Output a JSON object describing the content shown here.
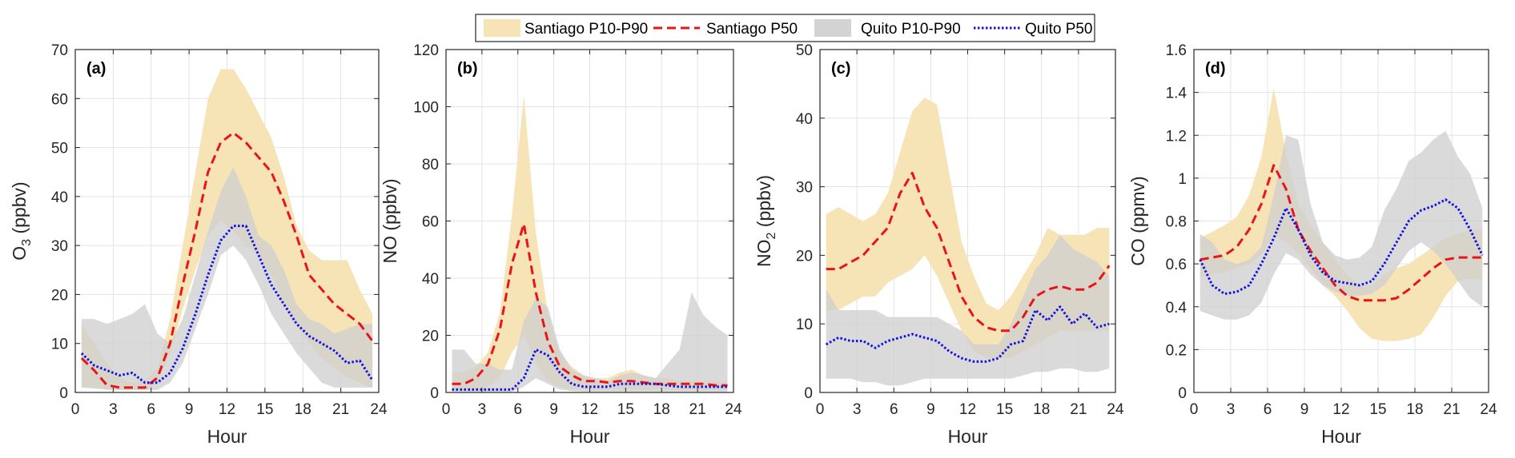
{
  "legend": {
    "items": [
      {
        "label": "Santiago P10-P90",
        "kind": "band",
        "color": "#f6e4b7"
      },
      {
        "label": "Santiago P50",
        "kind": "dashed",
        "color": "#e8141a"
      },
      {
        "label": "Quito P10-P90",
        "kind": "band",
        "color": "#d3d3d3"
      },
      {
        "label": "Quito P50",
        "kind": "dotted",
        "color": "#1212e0"
      }
    ]
  },
  "colors": {
    "santiago_band": "#f6e4b7",
    "quito_band": "#cfcfcf",
    "santiago_p50": "#e8141a",
    "quito_p50": "#1212e0",
    "grid": "#e3e3e3",
    "axis": "#262626"
  },
  "chart_data": [
    {
      "type": "area",
      "panel_label": "(a)",
      "xlabel": "Hour",
      "ylabel": "O",
      "ylabel_sub": "3",
      "ylabel_after": " (ppbv)",
      "xlim": [
        0,
        24
      ],
      "ylim": [
        0,
        70
      ],
      "xticks": [
        0,
        3,
        6,
        9,
        12,
        15,
        18,
        21,
        24
      ],
      "yticks": [
        0,
        10,
        20,
        30,
        40,
        50,
        60,
        70
      ],
      "grid": true,
      "x": [
        0.5,
        1.5,
        2.5,
        3.5,
        4.5,
        5.5,
        6.5,
        7.5,
        8.5,
        9.5,
        10.5,
        11.5,
        12.5,
        13.5,
        14.5,
        15.5,
        16.5,
        17.5,
        18.5,
        19.5,
        20.5,
        21.5,
        22.5,
        23.5
      ],
      "series": [
        {
          "name": "Santiago P10-P90",
          "kind": "band",
          "lower": [
            1,
            1,
            0.5,
            0.5,
            0.5,
            0.5,
            2,
            8,
            17,
            25,
            32,
            35,
            33,
            30,
            28,
            24,
            18,
            14,
            10,
            7,
            5,
            3,
            2,
            1
          ],
          "upper": [
            14,
            10,
            6,
            3,
            2,
            2.5,
            5,
            15,
            30,
            45,
            60,
            66,
            66,
            62,
            57,
            52,
            44,
            34,
            29,
            27,
            27,
            27,
            21,
            16
          ]
        },
        {
          "name": "Santiago P50",
          "kind": "line",
          "values": [
            7,
            4.5,
            1.5,
            1,
            1,
            1,
            3,
            10,
            22,
            33,
            45,
            51,
            53,
            51,
            48,
            45,
            39,
            32,
            24,
            21,
            18,
            16,
            14,
            10.5
          ]
        },
        {
          "name": "Quito P10-P90",
          "kind": "band",
          "lower": [
            1,
            0.8,
            0.6,
            0.5,
            0.5,
            0.5,
            0.5,
            2,
            6,
            13,
            20,
            28,
            30,
            27,
            22,
            16,
            12,
            8,
            5,
            2,
            1,
            1,
            1,
            1
          ],
          "upper": [
            15,
            15,
            14,
            15,
            16,
            18,
            12,
            10,
            15,
            24,
            33,
            41,
            46,
            40,
            32,
            30,
            25,
            18,
            15,
            14,
            12,
            13,
            14,
            14
          ]
        },
        {
          "name": "Quito P50",
          "kind": "line",
          "values": [
            8,
            5.5,
            4.5,
            3.5,
            4,
            2,
            2,
            4,
            9,
            16,
            24,
            31,
            34,
            34,
            28,
            22,
            18,
            14,
            11.5,
            10,
            8.5,
            6,
            6.5,
            2.5
          ]
        }
      ]
    },
    {
      "type": "area",
      "panel_label": "(b)",
      "xlabel": "Hour",
      "ylabel": "NO",
      "ylabel_sub": "",
      "ylabel_after": " (ppbv)",
      "xlim": [
        0,
        24
      ],
      "ylim": [
        0,
        120
      ],
      "xticks": [
        0,
        3,
        6,
        9,
        12,
        15,
        18,
        21,
        24
      ],
      "yticks": [
        0,
        20,
        40,
        60,
        80,
        100,
        120
      ],
      "grid": true,
      "x": [
        0.5,
        1.5,
        2.5,
        3.5,
        4.5,
        5.5,
        6.5,
        7.5,
        8.5,
        9.5,
        10.5,
        11.5,
        12.5,
        13.5,
        14.5,
        15.5,
        16.5,
        17.5,
        18.5,
        19.5,
        20.5,
        21.5,
        22.5,
        23.5
      ],
      "series": [
        {
          "name": "Santiago P10-P90",
          "kind": "band",
          "lower": [
            1,
            1,
            1,
            2,
            5,
            14,
            20,
            10,
            4,
            2,
            1,
            1,
            1,
            1,
            1,
            1,
            1,
            1,
            1,
            1,
            1,
            1,
            1,
            1
          ],
          "upper": [
            7,
            7,
            9,
            14,
            28,
            62,
            104,
            56,
            28,
            14,
            9,
            6,
            5,
            5,
            7,
            8,
            6,
            5,
            5,
            4,
            4,
            4,
            4,
            4
          ]
        },
        {
          "name": "Santiago P50",
          "kind": "line",
          "values": [
            3,
            3,
            5,
            10,
            22,
            45,
            59,
            35,
            18,
            9,
            6,
            4,
            4,
            3.5,
            4,
            4,
            3.5,
            3,
            3,
            3,
            3,
            3,
            2.5,
            2.5
          ]
        },
        {
          "name": "Quito P10-P90",
          "kind": "band",
          "lower": [
            0.2,
            0.2,
            0.2,
            0.2,
            0.2,
            0.2,
            2,
            5,
            3,
            1,
            0.5,
            0.3,
            0.2,
            0.2,
            0.2,
            0.2,
            0.2,
            0.2,
            0.2,
            0.2,
            0.2,
            0.2,
            0.2,
            0.2
          ],
          "upper": [
            15,
            15,
            10,
            10,
            8,
            8,
            25,
            33,
            30,
            15,
            8,
            6,
            5,
            4,
            6,
            7,
            6,
            5,
            10,
            15,
            35,
            27,
            23,
            20
          ]
        },
        {
          "name": "Quito P50",
          "kind": "line",
          "values": [
            1,
            1,
            1,
            1,
            1,
            1,
            5,
            15,
            13,
            7,
            3,
            2,
            2,
            2,
            3,
            3,
            3,
            3,
            2.5,
            2,
            2,
            2,
            2,
            2
          ]
        }
      ]
    },
    {
      "type": "area",
      "panel_label": "(c)",
      "xlabel": "Hour",
      "ylabel": "NO",
      "ylabel_sub": "2",
      "ylabel_after": " (ppbv)",
      "xlim": [
        0,
        24
      ],
      "ylim": [
        0,
        50
      ],
      "xticks": [
        0,
        3,
        6,
        9,
        12,
        15,
        18,
        21,
        24
      ],
      "yticks": [
        0,
        10,
        20,
        30,
        40,
        50
      ],
      "grid": true,
      "x": [
        0.5,
        1.5,
        2.5,
        3.5,
        4.5,
        5.5,
        6.5,
        7.5,
        8.5,
        9.5,
        10.5,
        11.5,
        12.5,
        13.5,
        14.5,
        15.5,
        16.5,
        17.5,
        18.5,
        19.5,
        20.5,
        21.5,
        22.5,
        23.5
      ],
      "series": [
        {
          "name": "Santiago P10-P90",
          "kind": "band",
          "lower": [
            12,
            12,
            13,
            14,
            14,
            16,
            17,
            18,
            20,
            17,
            13,
            9,
            6,
            5,
            5,
            5,
            6,
            7,
            8,
            9,
            9,
            9,
            9,
            9
          ],
          "upper": [
            26,
            27,
            26,
            25,
            26,
            29,
            35,
            41,
            43,
            42,
            32,
            22,
            17,
            13,
            12,
            14,
            17,
            20,
            24,
            23,
            23,
            23,
            24,
            24
          ]
        },
        {
          "name": "Santiago P50",
          "kind": "line",
          "values": [
            18,
            18,
            19,
            20,
            22,
            24,
            29,
            32,
            27,
            24,
            19,
            14,
            11,
            9.5,
            9,
            9,
            11,
            14,
            15,
            15.5,
            15,
            15,
            16,
            18.5
          ]
        },
        {
          "name": "Quito P10-P90",
          "kind": "band",
          "lower": [
            2,
            2,
            2,
            1.5,
            1.5,
            1,
            1,
            1.5,
            2,
            2,
            2,
            2,
            2,
            2,
            2,
            2,
            2.5,
            3,
            3,
            3.5,
            3.5,
            3,
            3,
            3.5
          ],
          "upper": [
            15,
            12,
            12,
            12,
            12,
            11,
            11,
            11,
            11,
            11,
            10,
            9,
            7,
            7,
            7,
            10,
            14,
            18,
            20,
            23,
            21,
            20,
            19,
            17
          ]
        },
        {
          "name": "Quito P50",
          "kind": "line",
          "values": [
            7,
            8,
            7.5,
            7.5,
            6.5,
            7.5,
            8,
            8.5,
            8,
            7.5,
            6,
            5,
            4.5,
            4.5,
            5,
            7,
            7.5,
            12,
            10.5,
            12.5,
            10,
            11.5,
            9.5,
            10
          ]
        }
      ]
    },
    {
      "type": "area",
      "panel_label": "(d)",
      "xlabel": "Hour",
      "ylabel": "CO",
      "ylabel_sub": "",
      "ylabel_after": " (ppmv)",
      "xlim": [
        0,
        24
      ],
      "ylim": [
        0,
        1.6
      ],
      "xticks": [
        0,
        3,
        6,
        9,
        12,
        15,
        18,
        21,
        24
      ],
      "yticks": [
        0,
        0.2,
        0.4,
        0.6,
        0.8,
        1,
        1.2,
        1.4,
        1.6
      ],
      "yticklabels": [
        "0",
        "0.2",
        "0.4",
        "0.6",
        "0.8",
        "1",
        "1.2",
        "1.4",
        "1.6"
      ],
      "grid": true,
      "x": [
        0.5,
        1.5,
        2.5,
        3.5,
        4.5,
        5.5,
        6.5,
        7.5,
        8.5,
        9.5,
        10.5,
        11.5,
        12.5,
        13.5,
        14.5,
        15.5,
        16.5,
        17.5,
        18.5,
        19.5,
        20.5,
        21.5,
        22.5,
        23.5
      ],
      "series": [
        {
          "name": "Santiago P10-P90",
          "kind": "band",
          "lower": [
            0.54,
            0.55,
            0.56,
            0.58,
            0.6,
            0.64,
            0.74,
            0.7,
            0.65,
            0.58,
            0.5,
            0.45,
            0.38,
            0.3,
            0.25,
            0.24,
            0.24,
            0.25,
            0.27,
            0.35,
            0.45,
            0.52,
            0.53,
            0.53
          ],
          "upper": [
            0.72,
            0.75,
            0.78,
            0.82,
            0.92,
            1.1,
            1.42,
            1.12,
            0.88,
            0.78,
            0.7,
            0.62,
            0.55,
            0.5,
            0.5,
            0.55,
            0.58,
            0.6,
            0.64,
            0.68,
            0.72,
            0.74,
            0.76,
            0.76
          ]
        },
        {
          "name": "Santiago P50",
          "kind": "line",
          "values": [
            0.62,
            0.63,
            0.64,
            0.68,
            0.76,
            0.88,
            1.06,
            0.95,
            0.76,
            0.66,
            0.58,
            0.5,
            0.45,
            0.43,
            0.43,
            0.43,
            0.44,
            0.48,
            0.53,
            0.58,
            0.62,
            0.63,
            0.63,
            0.63
          ]
        },
        {
          "name": "Quito P10-P90",
          "kind": "band",
          "lower": [
            0.38,
            0.36,
            0.34,
            0.34,
            0.36,
            0.42,
            0.55,
            0.65,
            0.62,
            0.55,
            0.5,
            0.47,
            0.45,
            0.45,
            0.46,
            0.5,
            0.58,
            0.66,
            0.7,
            0.66,
            0.6,
            0.52,
            0.44,
            0.4
          ],
          "upper": [
            0.74,
            0.7,
            0.62,
            0.6,
            0.62,
            0.68,
            0.92,
            1.2,
            1.18,
            0.88,
            0.7,
            0.64,
            0.62,
            0.63,
            0.68,
            0.85,
            0.95,
            1.08,
            1.12,
            1.18,
            1.22,
            1.1,
            1.02,
            0.86
          ]
        },
        {
          "name": "Quito P50",
          "kind": "line",
          "values": [
            0.62,
            0.5,
            0.46,
            0.47,
            0.5,
            0.6,
            0.72,
            0.86,
            0.76,
            0.64,
            0.56,
            0.52,
            0.51,
            0.5,
            0.52,
            0.6,
            0.7,
            0.8,
            0.85,
            0.87,
            0.9,
            0.86,
            0.76,
            0.64
          ]
        }
      ]
    }
  ]
}
